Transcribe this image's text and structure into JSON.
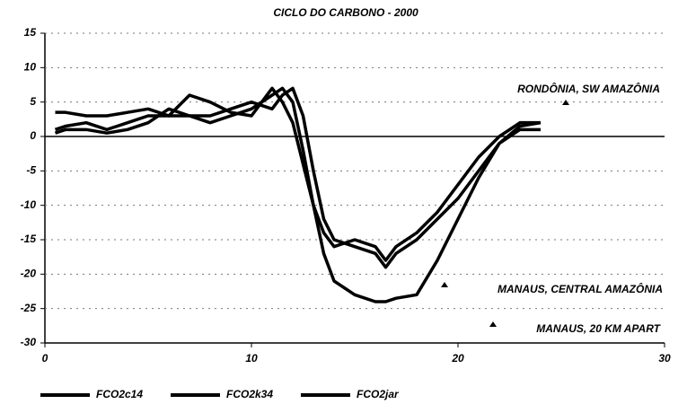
{
  "chart_data": {
    "type": "line",
    "title": "CICLO DO CARBONO - 2000",
    "x": [
      0.5,
      1,
      2,
      3,
      4,
      5,
      6,
      7,
      8,
      9,
      10,
      11,
      11.5,
      12,
      12.5,
      13,
      13.5,
      14,
      15,
      16,
      16.5,
      17,
      18,
      19,
      20,
      21,
      22,
      23,
      24
    ],
    "series": [
      {
        "name": "FCO2c14",
        "color": "#000000",
        "values": [
          1,
          1.5,
          2,
          1,
          2,
          3,
          3,
          3,
          2,
          3,
          4,
          6,
          7,
          5,
          -2,
          -10,
          -17,
          -21,
          -23,
          -24,
          -24,
          -23.5,
          -23,
          -18,
          -12,
          -6,
          -1,
          1,
          1
        ]
      },
      {
        "name": "FCO2k34",
        "color": "#000000",
        "values": [
          3.5,
          3.5,
          3,
          3,
          3.5,
          4,
          3,
          6,
          5,
          3.5,
          3,
          7,
          5,
          2,
          -4,
          -10,
          -14,
          -16,
          -15,
          -16,
          -18,
          -16,
          -14,
          -11,
          -7,
          -3,
          0,
          2,
          2
        ]
      },
      {
        "name": "FCO2jar",
        "color": "#000000",
        "values": [
          0.5,
          1,
          1,
          0.5,
          1,
          2,
          4,
          3,
          3,
          4,
          5,
          4,
          6,
          7,
          3,
          -5,
          -12,
          -15,
          -16,
          -17,
          -19,
          -17,
          -15,
          -12,
          -9,
          -5,
          -1,
          1.5,
          2
        ]
      }
    ],
    "xlim": [
      0,
      30
    ],
    "xticks": [
      0,
      10,
      20,
      30
    ],
    "ylim": [
      -30,
      15
    ],
    "yticks": [
      15,
      10,
      5,
      0,
      -5,
      -10,
      -15,
      -20,
      -25,
      -30
    ],
    "grid": true,
    "annotations": [
      "RONDÔNIA, SW AMAZÔNIA",
      "MANAUS, CENTRAL AMAZÔNIA",
      "MANAUS, 20 KM APART"
    ]
  }
}
